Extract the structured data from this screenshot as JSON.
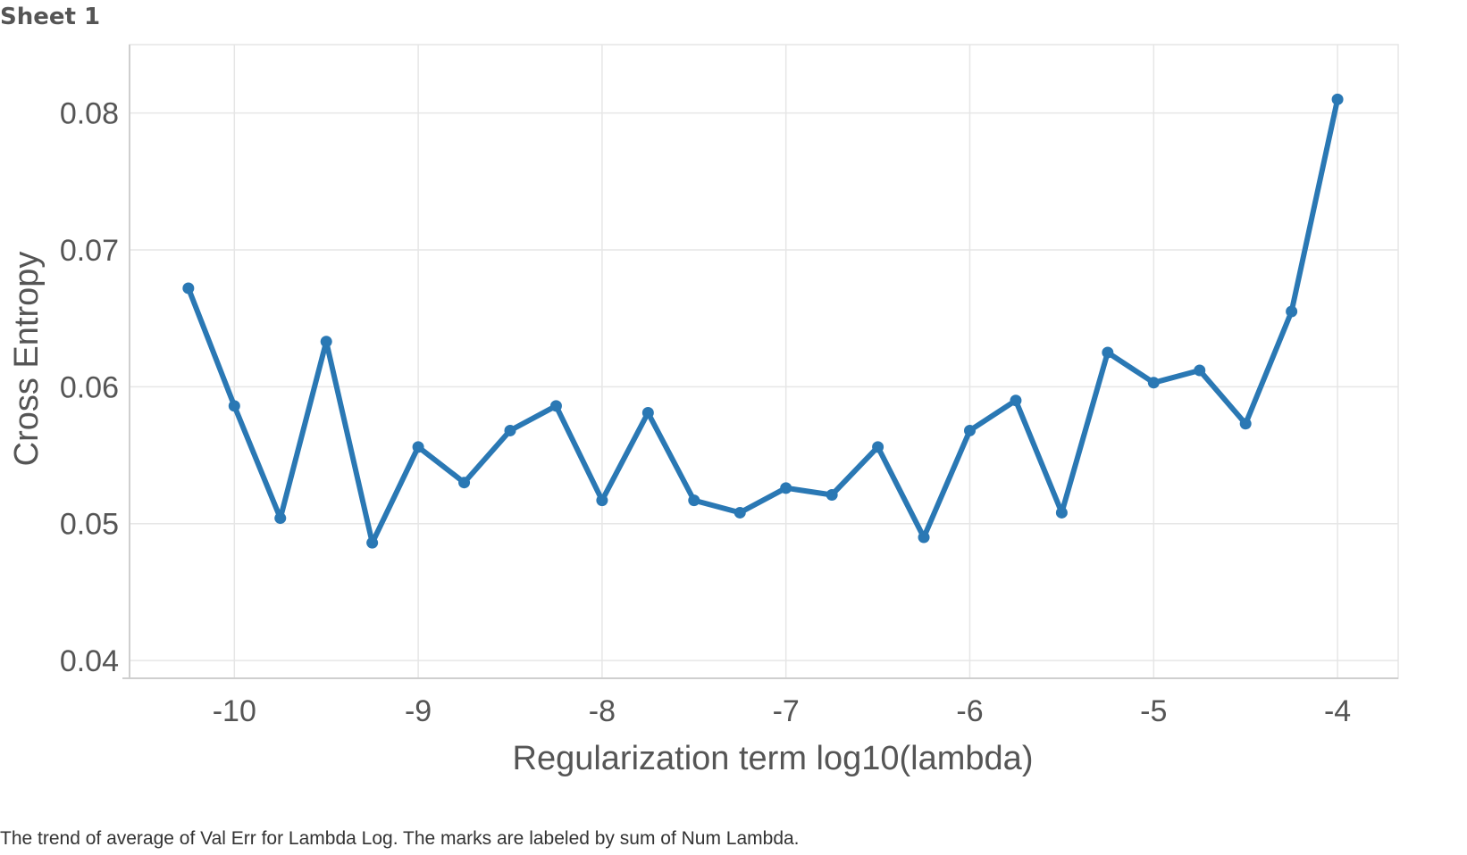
{
  "sheet_title": "Sheet 1",
  "caption": "The trend of average of Val Err for Lambda Log.  The marks are labeled by sum of Num Lambda.",
  "colors": {
    "series": "#2a78b4",
    "grid": "#e6e6e6",
    "axis": "#cfcfcf",
    "text": "#555555"
  },
  "chart_data": {
    "type": "line",
    "title": "",
    "xlabel": "Regularization term log10(lambda)",
    "ylabel": "Cross Entropy",
    "xlim": [
      -10.57,
      -3.67
    ],
    "ylim": [
      0.0387,
      0.085
    ],
    "x_ticks": [
      -10,
      -9,
      -8,
      -7,
      -6,
      -5,
      -4
    ],
    "x_tick_labels": [
      "-10",
      "-9",
      "-8",
      "-7",
      "-6",
      "-5",
      "-4"
    ],
    "y_ticks": [
      0.04,
      0.05,
      0.06,
      0.07,
      0.08
    ],
    "y_tick_labels": [
      "0.04",
      "0.05",
      "0.06",
      "0.07",
      "0.08"
    ],
    "grid": true,
    "series": [
      {
        "x": [
          -10.25,
          -10.0,
          -9.75,
          -9.5,
          -9.25,
          -9.0,
          -8.75,
          -8.5,
          -8.25,
          -8.0,
          -7.75,
          -7.5,
          -7.25,
          -7.0,
          -6.75,
          -6.5,
          -6.25,
          -6.0,
          -5.75,
          -5.5,
          -5.25,
          -5.0,
          -4.75,
          -4.5,
          -4.25,
          -4.0
        ],
        "values": [
          0.0672,
          0.0586,
          0.0504,
          0.0633,
          0.0486,
          0.0556,
          0.053,
          0.0568,
          0.0586,
          0.0517,
          0.0581,
          0.0517,
          0.0508,
          0.0526,
          0.0521,
          0.0556,
          0.049,
          0.0568,
          0.059,
          0.0508,
          0.0625,
          0.0603,
          0.0612,
          0.0573,
          0.0655,
          0.081
        ]
      }
    ]
  }
}
